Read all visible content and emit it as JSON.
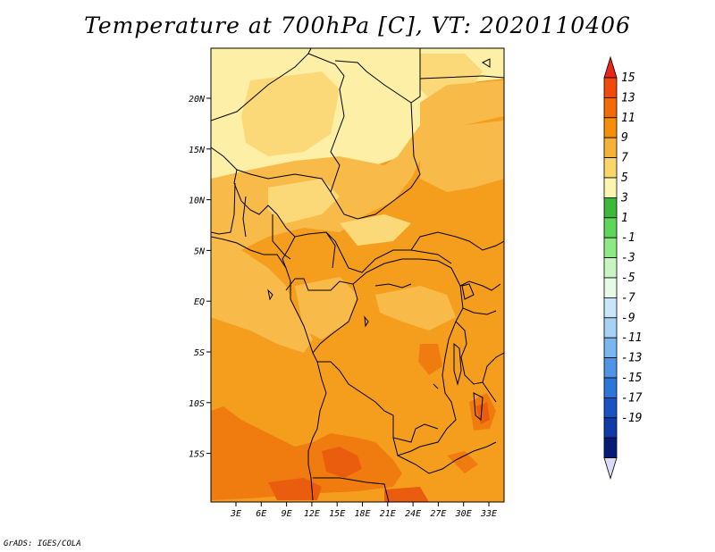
{
  "title": "Temperature at 700hPa [C], VT: 2020110406",
  "footer": "GrADS: IGES/COLA",
  "map": {
    "lat_labels": [
      "20N",
      "15N",
      "10N",
      "5N",
      "EQ",
      "5S",
      "10S",
      "15S"
    ],
    "lon_labels": [
      "3E",
      "6E",
      "9E",
      "12E",
      "15E",
      "18E",
      "21E",
      "24E",
      "27E",
      "30E",
      "33E"
    ]
  },
  "colorbar": {
    "labels": [
      "15",
      "13",
      "11",
      "9",
      "7",
      "5",
      "3",
      "1",
      "-1",
      "-3",
      "-5",
      "-7",
      "-9",
      "-11",
      "-13",
      "-15",
      "-17",
      "-19"
    ],
    "colors": [
      "#e8261a",
      "#f24a0c",
      "#f56a08",
      "#f58f0a",
      "#f5b238",
      "#fad66a",
      "#fdf4b0",
      "#3cb83a",
      "#5fd65a",
      "#8ee886",
      "#c7f5c0",
      "#e6fae6",
      "#c8e6fa",
      "#a6d2f6",
      "#7ab6f0",
      "#5094e6",
      "#2f74d8",
      "#1a52c4",
      "#103aa8",
      "#061a78",
      "#d9dcf4"
    ]
  },
  "field_colors": {
    "c5": "#fdf0a6",
    "c7": "#fbd978",
    "c9": "#f8bb4a",
    "c11": "#f59e1e",
    "c13": "#f07c10",
    "c15": "#ea5c0e"
  }
}
